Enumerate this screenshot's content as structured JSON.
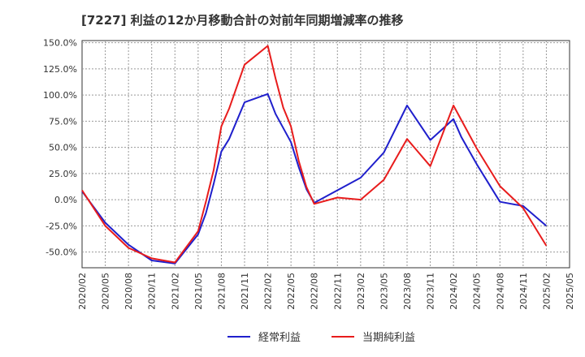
{
  "chart_data": {
    "type": "line",
    "title": "[7227]  利益の12か月移動合計の対前年同期増減率の推移",
    "xlabel": "",
    "ylabel": "",
    "x_ticks": [
      "2020/02",
      "2020/05",
      "2020/08",
      "2020/11",
      "2021/02",
      "2021/05",
      "2021/08",
      "2021/11",
      "2022/02",
      "2022/05",
      "2022/08",
      "2022/11",
      "2023/02",
      "2023/05",
      "2023/08",
      "2023/11",
      "2024/02",
      "2024/05",
      "2024/08",
      "2024/11",
      "2025/02",
      "2025/05"
    ],
    "x_range": [
      "2020/02",
      "2025/05"
    ],
    "ylim": [
      -65,
      152
    ],
    "y_ticks": [
      -50,
      -25,
      0,
      25,
      50,
      75,
      100,
      125,
      150
    ],
    "y_tick_labels": [
      "-50.0%",
      "-25.0%",
      "0.0%",
      "25.0%",
      "50.0%",
      "75.0%",
      "100.0%",
      "125.0%",
      "150.0%"
    ],
    "grid": true,
    "legend_position": "bottom",
    "series": [
      {
        "name": "経常利益",
        "color": "#1f1fcc",
        "points": [
          {
            "x": "2020/02",
            "y": 8
          },
          {
            "x": "2020/05",
            "y": -22
          },
          {
            "x": "2020/08",
            "y": -43
          },
          {
            "x": "2020/11",
            "y": -58
          },
          {
            "x": "2021/02",
            "y": -61
          },
          {
            "x": "2021/05",
            "y": -33
          },
          {
            "x": "2021/06",
            "y": -13
          },
          {
            "x": "2021/07",
            "y": 15
          },
          {
            "x": "2021/08",
            "y": 46
          },
          {
            "x": "2021/09",
            "y": 58
          },
          {
            "x": "2021/11",
            "y": 93
          },
          {
            "x": "2022/02",
            "y": 101
          },
          {
            "x": "2022/03",
            "y": 82
          },
          {
            "x": "2022/05",
            "y": 55
          },
          {
            "x": "2022/06",
            "y": 31
          },
          {
            "x": "2022/07",
            "y": 10
          },
          {
            "x": "2022/08",
            "y": -3
          },
          {
            "x": "2022/11",
            "y": 9
          },
          {
            "x": "2023/02",
            "y": 21
          },
          {
            "x": "2023/05",
            "y": 45
          },
          {
            "x": "2023/08",
            "y": 90
          },
          {
            "x": "2023/11",
            "y": 57
          },
          {
            "x": "2024/02",
            "y": 77
          },
          {
            "x": "2024/03",
            "y": 60
          },
          {
            "x": "2024/05",
            "y": 34
          },
          {
            "x": "2024/08",
            "y": -2
          },
          {
            "x": "2024/11",
            "y": -6
          },
          {
            "x": "2025/02",
            "y": -25
          }
        ]
      },
      {
        "name": "当期純利益",
        "color": "#e81c1c",
        "points": [
          {
            "x": "2020/02",
            "y": 9
          },
          {
            "x": "2020/05",
            "y": -25
          },
          {
            "x": "2020/08",
            "y": -46
          },
          {
            "x": "2020/11",
            "y": -56
          },
          {
            "x": "2021/02",
            "y": -60
          },
          {
            "x": "2021/05",
            "y": -30
          },
          {
            "x": "2021/06",
            "y": -2
          },
          {
            "x": "2021/07",
            "y": 28
          },
          {
            "x": "2021/08",
            "y": 70
          },
          {
            "x": "2021/09",
            "y": 87
          },
          {
            "x": "2021/11",
            "y": 129
          },
          {
            "x": "2022/02",
            "y": 147
          },
          {
            "x": "2022/03",
            "y": 116
          },
          {
            "x": "2022/04",
            "y": 88
          },
          {
            "x": "2022/05",
            "y": 70
          },
          {
            "x": "2022/06",
            "y": 37
          },
          {
            "x": "2022/07",
            "y": 12
          },
          {
            "x": "2022/08",
            "y": -4
          },
          {
            "x": "2022/11",
            "y": 2
          },
          {
            "x": "2023/02",
            "y": 0
          },
          {
            "x": "2023/05",
            "y": 19
          },
          {
            "x": "2023/08",
            "y": 58
          },
          {
            "x": "2023/11",
            "y": 32
          },
          {
            "x": "2024/02",
            "y": 90
          },
          {
            "x": "2024/05",
            "y": 49
          },
          {
            "x": "2024/08",
            "y": 13
          },
          {
            "x": "2024/11",
            "y": -8
          },
          {
            "x": "2025/02",
            "y": -44
          }
        ]
      }
    ]
  }
}
